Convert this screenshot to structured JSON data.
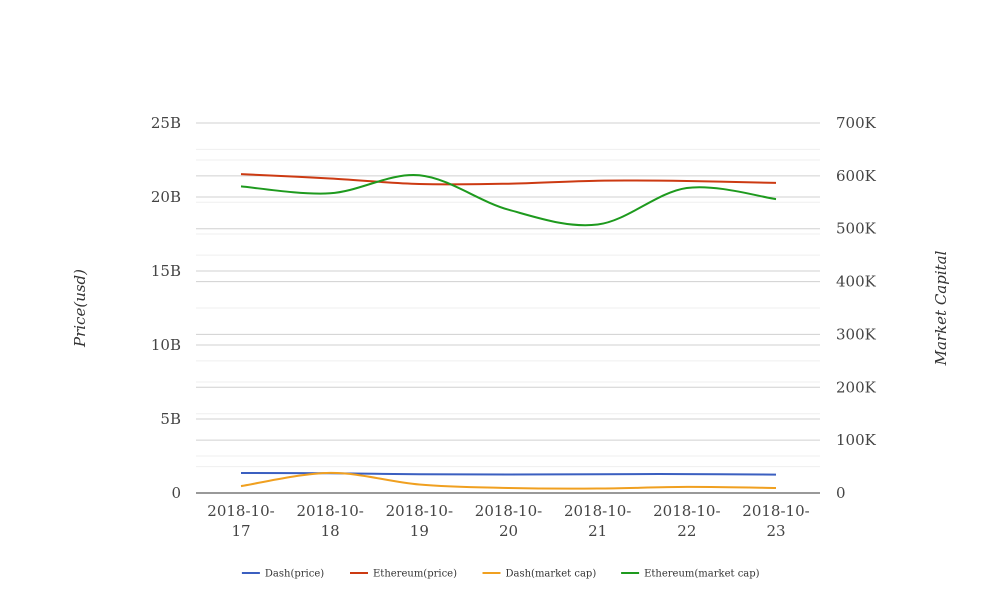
{
  "chart_data": {
    "type": "line",
    "title": "",
    "x": [
      "2018-10-17",
      "2018-10-18",
      "2018-10-19",
      "2018-10-20",
      "2018-10-21",
      "2018-10-22",
      "2018-10-23"
    ],
    "x_tick_labels": [
      [
        "2018-10-",
        "17"
      ],
      [
        "2018-10-",
        "18"
      ],
      [
        "2018-10-",
        "19"
      ],
      [
        "2018-10-",
        "20"
      ],
      [
        "2018-10-",
        "21"
      ],
      [
        "2018-10-",
        "22"
      ],
      [
        "2018-10-",
        "23"
      ]
    ],
    "left_axis": {
      "label": "Price(usd)",
      "ylim": [
        0,
        25000000000
      ],
      "ticks": [
        0,
        5000000000,
        10000000000,
        15000000000,
        20000000000,
        25000000000
      ],
      "tick_labels": [
        "0",
        "5B",
        "10B",
        "15B",
        "20B",
        "25B"
      ]
    },
    "right_axis": {
      "label": "Market Capital",
      "ylim": [
        0,
        700000
      ],
      "ticks": [
        0,
        100000,
        200000,
        300000,
        400000,
        500000,
        600000,
        700000
      ],
      "tick_labels": [
        "0",
        "100K",
        "200K",
        "300K",
        "400K",
        "500K",
        "600K",
        "700K"
      ]
    },
    "grid": true,
    "legend_position": "bottom-center",
    "series": [
      {
        "name": "Dash(price)",
        "axis": "left",
        "color": "#3b5fc0",
        "values": [
          1350000000,
          1330000000,
          1270000000,
          1250000000,
          1270000000,
          1280000000,
          1240000000
        ]
      },
      {
        "name": "Ethereum(price)",
        "axis": "left",
        "color": "#cc3a12",
        "values": [
          21550000000,
          21250000000,
          20880000000,
          20900000000,
          21100000000,
          21080000000,
          20950000000
        ]
      },
      {
        "name": "Dash(market cap)",
        "axis": "right",
        "color": "#f0a020",
        "values": [
          13000,
          38000,
          16000,
          9500,
          8500,
          11500,
          9500
        ]
      },
      {
        "name": "Ethereum(market cap)",
        "axis": "right",
        "color": "#1e9a1e",
        "values": [
          580000,
          567000,
          601000,
          536000,
          508000,
          577000,
          556000
        ]
      }
    ]
  }
}
